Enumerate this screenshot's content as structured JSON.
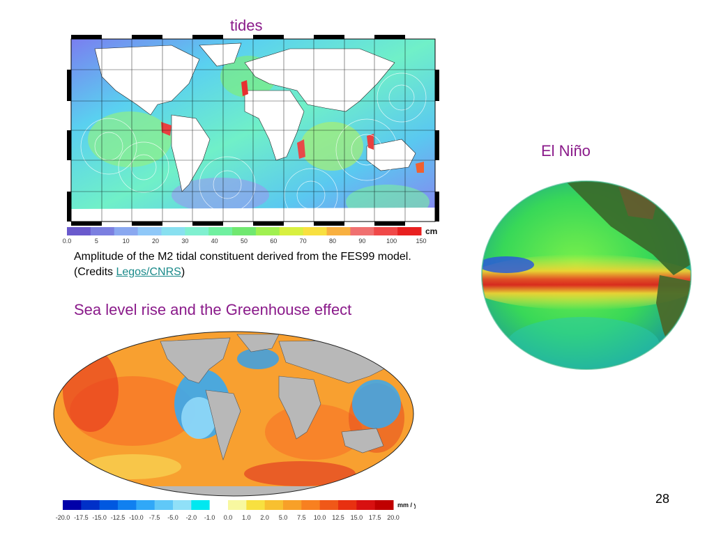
{
  "slide": {
    "tides_title": "tides",
    "elnino_title": "El Niño",
    "sea_level_title": "Sea level rise and the Greenhouse effect",
    "caption_text": "Amplitude of the M2 tidal constituent derived from the FES99 model. (Credits ",
    "caption_link": "Legos/CNRS",
    "caption_end": ")",
    "page_number": "28"
  },
  "tides_colorbar": {
    "unit": "cm",
    "ticks": [
      "0.0",
      "5",
      "10",
      "20",
      "30",
      "40",
      "50",
      "60",
      "70",
      "80",
      "90",
      "100",
      "150"
    ],
    "colors": [
      "#6a5acd",
      "#7b7fe0",
      "#8aa8f0",
      "#8fc8f8",
      "#88e0f0",
      "#80f0d0",
      "#70f0a0",
      "#70e870",
      "#a0f050",
      "#d8f040",
      "#f8e040",
      "#f8b040",
      "#f07070",
      "#f04848",
      "#e82020"
    ]
  },
  "sea_level_colorbar": {
    "unit": "mm / yr",
    "ticks": [
      "-20.0",
      "-17.5",
      "-15.0",
      "-12.5",
      "-10.0",
      "-7.5",
      "-5.0",
      "-2.0",
      "-1.0",
      "0.0",
      "1.0",
      "2.0",
      "5.0",
      "7.5",
      "10.0",
      "12.5",
      "15.0",
      "17.5",
      "20.0"
    ],
    "colors": [
      "#0000a8",
      "#0030c8",
      "#0058e0",
      "#1080f0",
      "#30a8f8",
      "#60c8f8",
      "#90e0f8",
      "#00e8f0",
      "#ffffff",
      "#f8f8a0",
      "#f8e040",
      "#f8c030",
      "#f8a028",
      "#f88020",
      "#f05818",
      "#e83010",
      "#d81010",
      "#c00000"
    ]
  }
}
